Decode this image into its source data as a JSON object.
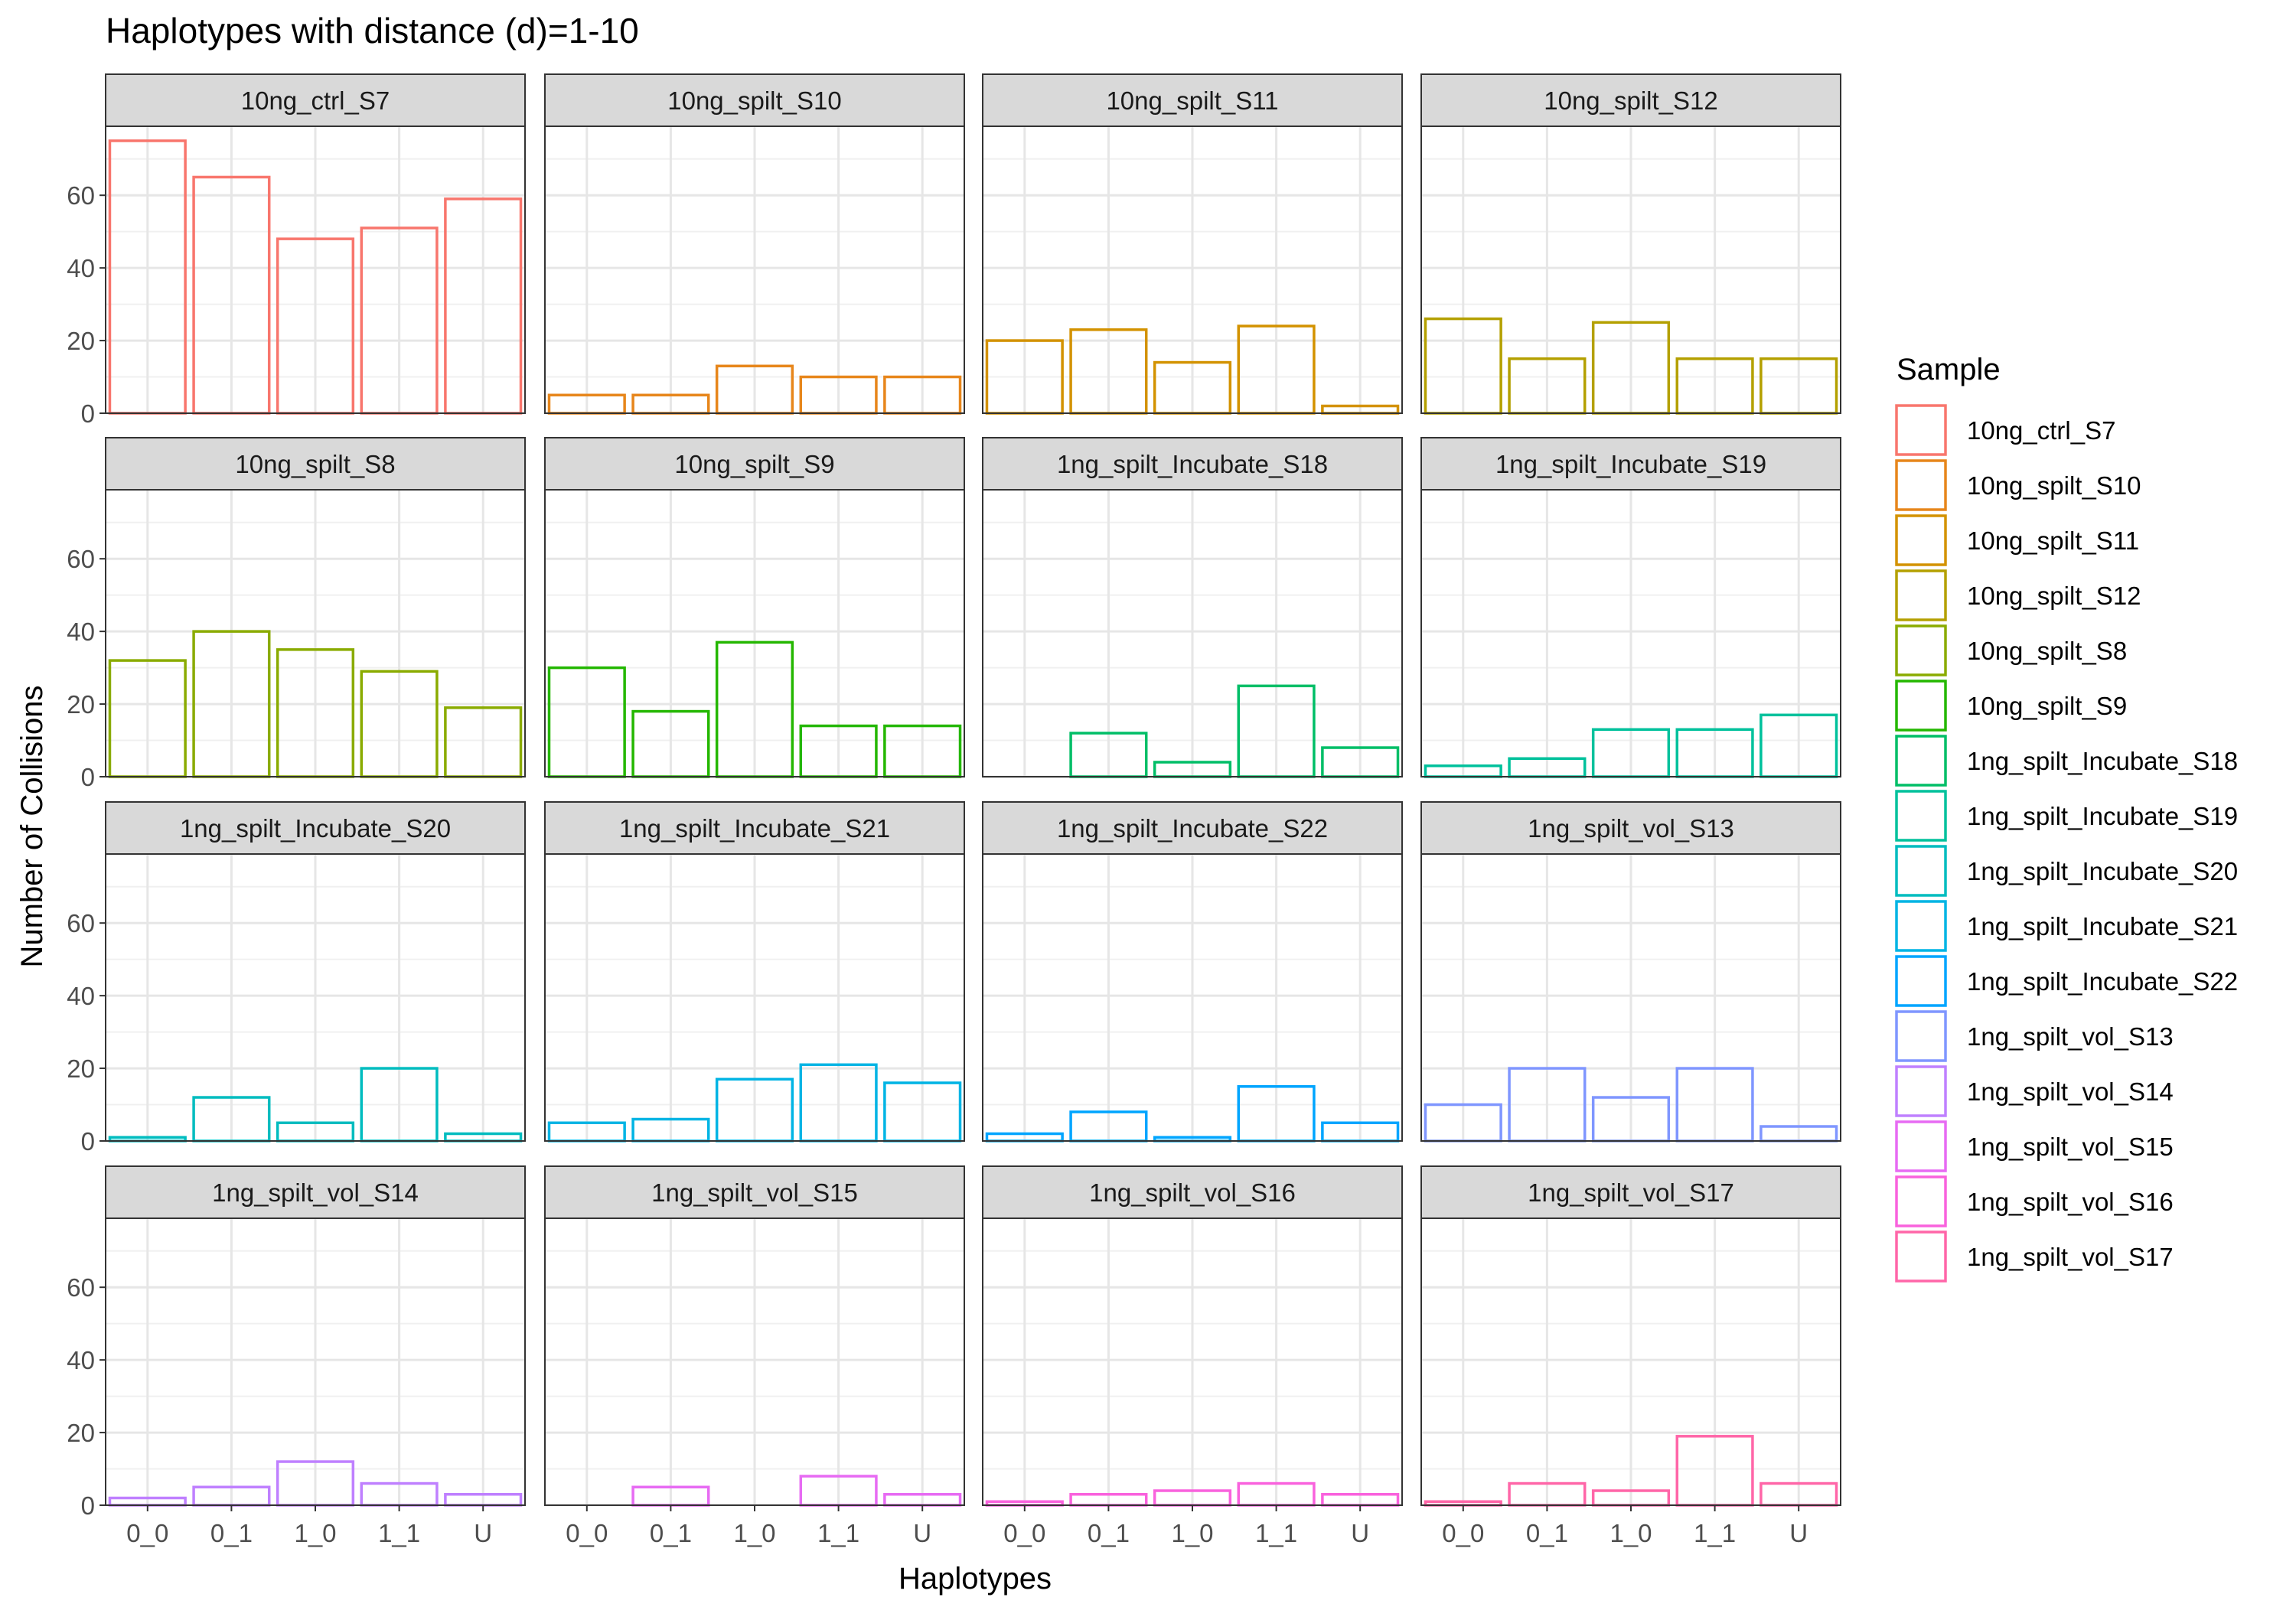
{
  "chart_data": {
    "type": "bar",
    "title": "Haplotypes with distance (d)=1-10",
    "xlabel": "Haplotypes",
    "ylabel": "Number of Collisions",
    "categories": [
      "0_0",
      "0_1",
      "1_0",
      "1_1",
      "U"
    ],
    "ylim": [
      0,
      79
    ],
    "yticks": [
      0,
      20,
      40,
      60
    ],
    "grid": true,
    "legend": {
      "title": "Sample",
      "position": "right"
    },
    "series": [
      {
        "name": "10ng_ctrl_S7",
        "color": "#F8766D",
        "values": [
          75,
          65,
          48,
          51,
          59
        ]
      },
      {
        "name": "10ng_spilt_S10",
        "color": "#E7861B",
        "values": [
          5,
          5,
          13,
          10,
          10
        ]
      },
      {
        "name": "10ng_spilt_S11",
        "color": "#D39200",
        "values": [
          20,
          23,
          14,
          24,
          2
        ]
      },
      {
        "name": "10ng_spilt_S12",
        "color": "#B4A000",
        "values": [
          26,
          15,
          25,
          15,
          15
        ]
      },
      {
        "name": "10ng_spilt_S8",
        "color": "#8AAB00",
        "values": [
          32,
          40,
          35,
          29,
          19
        ]
      },
      {
        "name": "10ng_spilt_S9",
        "color": "#24B700",
        "values": [
          30,
          18,
          37,
          14,
          14
        ]
      },
      {
        "name": "1ng_spilt_Incubate_S18",
        "color": "#00BE67",
        "values": [
          null,
          12,
          4,
          25,
          8
        ]
      },
      {
        "name": "1ng_spilt_Incubate_S19",
        "color": "#00C19C",
        "values": [
          3,
          5,
          13,
          13,
          17
        ]
      },
      {
        "name": "1ng_spilt_Incubate_S20",
        "color": "#00BCBF",
        "values": [
          1,
          12,
          5,
          20,
          2
        ]
      },
      {
        "name": "1ng_spilt_Incubate_S21",
        "color": "#00B4E4",
        "values": [
          5,
          6,
          17,
          21,
          16
        ]
      },
      {
        "name": "1ng_spilt_Incubate_S22",
        "color": "#00A5FF",
        "values": [
          2,
          8,
          1,
          15,
          5
        ]
      },
      {
        "name": "1ng_spilt_vol_S13",
        "color": "#7F96FF",
        "values": [
          10,
          20,
          12,
          20,
          4
        ]
      },
      {
        "name": "1ng_spilt_vol_S14",
        "color": "#BF80FF",
        "values": [
          2,
          5,
          12,
          6,
          3
        ]
      },
      {
        "name": "1ng_spilt_vol_S15",
        "color": "#E76BF3",
        "values": [
          null,
          5,
          null,
          8,
          3
        ]
      },
      {
        "name": "1ng_spilt_vol_S16",
        "color": "#F962DD",
        "values": [
          1,
          3,
          4,
          6,
          3
        ]
      },
      {
        "name": "1ng_spilt_vol_S17",
        "color": "#FF66A8",
        "values": [
          1,
          6,
          4,
          19,
          6
        ]
      }
    ]
  }
}
